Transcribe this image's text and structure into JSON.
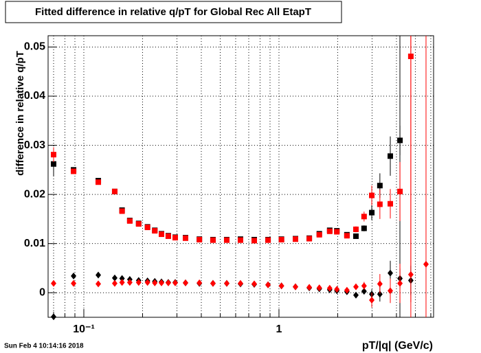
{
  "chart_data": {
    "type": "scatter",
    "title": "Fitted difference in relative q/pT for Global Rec All EtapT",
    "x_label": "pT/|q| (GeV/c)",
    "y_label": "difference in relative q/pT",
    "timestamp": "Sun Feb  4 10:14:16 2018",
    "x_log": true,
    "grid": true,
    "xlim": [
      0.0656,
      6.2
    ],
    "ylim": [
      -0.005,
      0.0523
    ],
    "xticks": [
      {
        "value": 0.1,
        "label": "10⁻¹"
      },
      1
    ],
    "xminor_ticks": [
      0.07,
      0.08,
      0.09,
      0.2,
      0.3,
      0.4,
      0.5,
      0.6,
      0.7,
      0.8,
      0.9,
      2,
      3,
      4,
      5,
      6
    ],
    "yticks": [
      0,
      0.01,
      0.02,
      0.03,
      0.04,
      0.05
    ],
    "x": [
      0.07,
      0.0886,
      0.1186,
      0.144,
      0.157,
      0.172,
      0.191,
      0.212,
      0.231,
      0.25,
      0.271,
      0.294,
      0.332,
      0.391,
      0.459,
      0.54,
      0.635,
      0.747,
      0.879,
      1.03,
      1.215,
      1.43,
      1.61,
      1.82,
      1.98,
      2.23,
      2.48,
      2.73,
      2.99,
      3.29,
      3.72,
      4.17,
      4.74,
      5.67
    ],
    "series": [
      {
        "color": "#000000",
        "marker": "square",
        "values": [
          0.0262,
          0.025,
          0.0228,
          0.0206,
          0.0168,
          0.0147,
          0.0141,
          0.0134,
          0.0127,
          0.012,
          0.0116,
          0.0113,
          0.0112,
          0.0109,
          0.0108,
          0.0108,
          0.0109,
          0.0108,
          0.0108,
          0.0109,
          0.011,
          0.0111,
          0.012,
          0.0127,
          0.0126,
          0.0118,
          0.0115,
          0.0131,
          0.0163,
          0.0218,
          0.0278,
          0.031,
          null,
          null
        ],
        "errors": [
          0.0025,
          0.0003,
          0.0003,
          0.0002,
          0.0002,
          0.0002,
          0.0002,
          0.0002,
          0.0002,
          0.0002,
          0.0002,
          0.0002,
          0.0002,
          0.0002,
          0.0002,
          0.0002,
          0.0002,
          0.0002,
          0.0002,
          0.0002,
          0.0002,
          0.0002,
          0.0003,
          0.0003,
          0.0003,
          0.0004,
          0.0005,
          0.0006,
          0.0015,
          0.0025,
          0.004,
          0.003,
          null,
          null
        ]
      },
      {
        "color": "#ff0000",
        "marker": "square",
        "values": [
          0.0281,
          0.0247,
          0.0225,
          0.0206,
          0.0166,
          0.0146,
          0.014,
          0.0133,
          0.0126,
          0.0119,
          0.0115,
          0.0112,
          0.0111,
          0.0108,
          0.0107,
          0.0107,
          0.0107,
          0.0106,
          0.0107,
          0.0108,
          0.0109,
          0.011,
          0.0118,
          0.0125,
          0.0124,
          0.0116,
          0.0129,
          0.0155,
          0.0198,
          0.018,
          0.0181,
          0.0206,
          0.0481,
          null
        ],
        "errors": [
          0.0015,
          0.0003,
          0.0003,
          0.0002,
          0.0002,
          0.0002,
          0.0002,
          0.0002,
          0.0002,
          0.0002,
          0.0002,
          0.0002,
          0.0002,
          0.0002,
          0.0002,
          0.0002,
          0.0002,
          0.0002,
          0.0002,
          0.0002,
          0.0002,
          0.0002,
          0.0003,
          0.0003,
          0.0003,
          0.0004,
          0.0006,
          0.001,
          0.002,
          0.003,
          0.003,
          0.006,
          0.05,
          null
        ]
      },
      {
        "color": "#000000",
        "marker": "diamond",
        "values": [
          -0.0049,
          0.0034,
          0.0036,
          0.003,
          0.0029,
          0.0027,
          0.0025,
          0.0024,
          0.0023,
          0.0022,
          0.0021,
          0.0021,
          0.002,
          0.0019,
          0.0019,
          0.0019,
          0.0018,
          0.0017,
          0.0016,
          0.0014,
          0.0012,
          0.001,
          0.0008,
          0.0006,
          0.0004,
          0.0002,
          -0.0005,
          0.0003,
          -0.0003,
          -0.0003,
          0.004,
          0.0029,
          0.0025,
          null
        ],
        "errors": [
          0.001,
          0.0002,
          0.0002,
          0.0002,
          0.0002,
          0.0002,
          0.0002,
          0.0002,
          0.0002,
          0.0002,
          0.0002,
          0.0002,
          0.0002,
          0.0002,
          0.0002,
          0.0002,
          0.0002,
          0.0002,
          0.0002,
          0.0002,
          0.0002,
          0.0002,
          0.0002,
          0.0002,
          0.0003,
          0.0003,
          0.0005,
          0.0006,
          0.001,
          0.0015,
          0.0025,
          0.002,
          0.003,
          null
        ]
      },
      {
        "color": "#ff0000",
        "marker": "diamond",
        "values": [
          0.0019,
          0.0019,
          0.0018,
          0.0019,
          0.0021,
          0.0021,
          0.0021,
          0.0021,
          0.002,
          0.002,
          0.002,
          0.002,
          0.002,
          0.002,
          0.0019,
          0.0019,
          0.0019,
          0.0018,
          0.0016,
          0.0014,
          0.0012,
          0.0011,
          0.001,
          0.0009,
          0.0007,
          0.0005,
          0.0012,
          0.0014,
          -0.0015,
          0.0018,
          0.0004,
          0.0019,
          0.0037,
          0.0058
        ],
        "errors": [
          0.0006,
          0.0002,
          0.0002,
          0.0002,
          0.0002,
          0.0002,
          0.0002,
          0.0002,
          0.0002,
          0.0002,
          0.0002,
          0.0002,
          0.0002,
          0.0002,
          0.0002,
          0.0002,
          0.0002,
          0.0002,
          0.0002,
          0.0002,
          0.0002,
          0.0002,
          0.0002,
          0.0002,
          0.0003,
          0.0003,
          0.0005,
          0.0008,
          0.0015,
          0.002,
          0.0025,
          0.004,
          0.05,
          0.05
        ]
      }
    ]
  }
}
